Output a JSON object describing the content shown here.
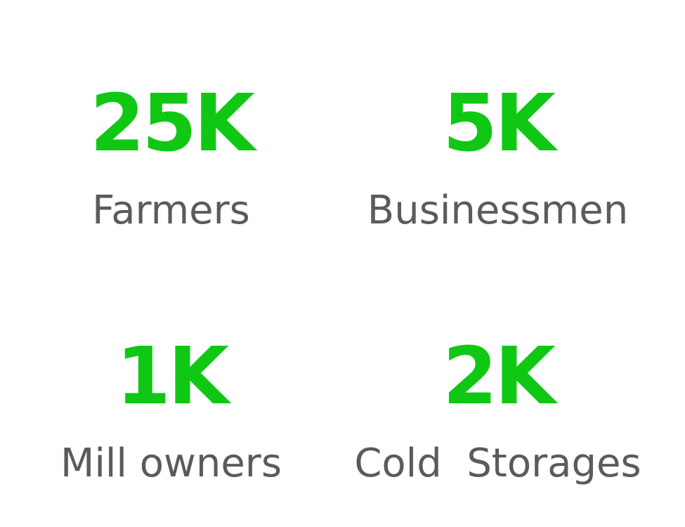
{
  "colors": {
    "value": "#10c814",
    "label": "#5b5b5b",
    "background": "#ffffff"
  },
  "stats": [
    {
      "value": "25K",
      "label": "Farmers"
    },
    {
      "value": "5K",
      "label": "Businessmen"
    },
    {
      "value": "1K",
      "label": "Mill owners"
    },
    {
      "value": "2K",
      "label": "Cold  Storages"
    }
  ]
}
